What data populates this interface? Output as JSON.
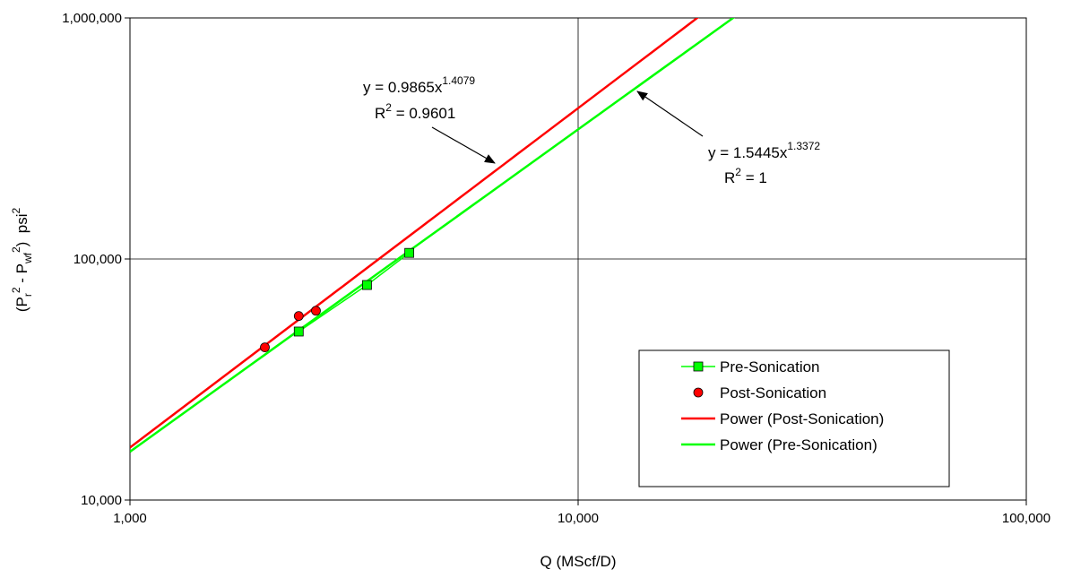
{
  "chart_data": {
    "type": "scatter",
    "xscale": "log",
    "yscale": "log",
    "xlim": [
      1000,
      100000
    ],
    "ylim": [
      10000,
      1000000
    ],
    "grid": true,
    "xlabel": "Q (MScf/D)",
    "ylabel": {
      "open": "(P",
      "r_sub": "r",
      "sup2a": "2",
      "minus": " - P",
      "wf_sub": "wf",
      "sup2b": "2",
      "close": ")  psi",
      "sup2c": "2"
    },
    "x_ticks": [
      {
        "value": 1000,
        "label": "1,000"
      },
      {
        "value": 10000,
        "label": "10,000"
      },
      {
        "value": 100000,
        "label": "100,000"
      }
    ],
    "y_ticks": [
      {
        "value": 10000,
        "label": "10,000"
      },
      {
        "value": 100000,
        "label": "100,000"
      },
      {
        "value": 1000000,
        "label": "1,000,000"
      }
    ],
    "legend_position": "bottom-right",
    "series": [
      {
        "name": "Pre-Sonication",
        "kind": "points",
        "marker": "square",
        "color": "#00ff00",
        "points": [
          {
            "x": 2380,
            "y": 50000
          },
          {
            "x": 3380,
            "y": 78000
          },
          {
            "x": 4200,
            "y": 106000
          }
        ]
      },
      {
        "name": "Post-Sonication",
        "kind": "points",
        "marker": "circle",
        "color": "#ff0000",
        "points": [
          {
            "x": 2000,
            "y": 43000
          },
          {
            "x": 2380,
            "y": 58000
          },
          {
            "x": 2600,
            "y": 61000
          }
        ]
      },
      {
        "name": "Power (Post-Sonication)",
        "kind": "trendline",
        "color": "#ff0000",
        "coef": 0.9865,
        "exponent": 1.4079
      },
      {
        "name": "Power (Pre-Sonication)",
        "kind": "trendline",
        "color": "#00ff00",
        "coef": 1.5445,
        "exponent": 1.3372
      }
    ],
    "annotations": [
      {
        "equation_prefix": "y = 0.9865x",
        "equation_exp": "1.4079",
        "r2_prefix": "R",
        "r2_sup": "2",
        "r2_suffix": " = 0.9601"
      },
      {
        "equation_prefix": "y = 1.5445x",
        "equation_exp": "1.3372",
        "r2_prefix": "R",
        "r2_sup": "2",
        "r2_suffix": " = 1"
      }
    ]
  }
}
